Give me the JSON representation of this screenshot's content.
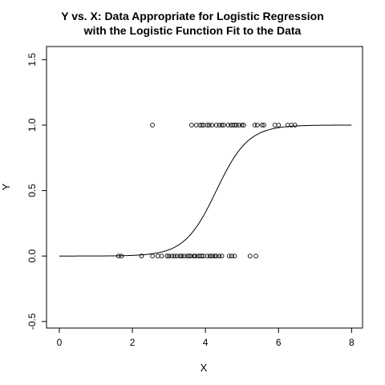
{
  "chart_data": {
    "type": "scatter",
    "title": [
      "Y vs. X: Data Appropriate for Logistic Regression",
      "with the Logistic Function Fit to the Data"
    ],
    "xlabel": "X",
    "ylabel": "Y",
    "xlim": [
      -0.35,
      8.3
    ],
    "ylim": [
      -0.55,
      1.6
    ],
    "xticks": [
      0,
      2,
      4,
      6,
      8
    ],
    "xtick_labels": [
      "0",
      "2",
      "4",
      "6",
      "8"
    ],
    "yticks": [
      -0.5,
      0.0,
      0.5,
      1.0,
      1.5
    ],
    "ytick_labels": [
      "-0.5",
      "0.0",
      "0.5",
      "1.0",
      "1.5"
    ],
    "grid": false,
    "legend": "none",
    "points_y0": [
      1.62,
      1.7,
      2.25,
      2.55,
      2.7,
      2.8,
      2.95,
      3.0,
      3.08,
      3.15,
      3.22,
      3.3,
      3.35,
      3.42,
      3.5,
      3.55,
      3.6,
      3.68,
      3.72,
      3.8,
      3.85,
      3.9,
      3.95,
      4.05,
      4.12,
      4.18,
      4.25,
      4.3,
      4.38,
      4.45,
      4.65,
      4.72,
      4.8,
      5.22,
      5.38
    ],
    "points_y1": [
      2.55,
      3.62,
      3.75,
      3.85,
      3.9,
      3.95,
      4.05,
      4.1,
      4.18,
      4.3,
      4.38,
      4.45,
      4.5,
      4.62,
      4.7,
      4.75,
      4.8,
      4.85,
      4.92,
      5.0,
      5.05,
      5.35,
      5.42,
      5.55,
      5.6,
      5.9,
      6.0,
      6.25,
      6.35,
      6.45
    ],
    "curve": {
      "type": "logistic",
      "x0": 4.3,
      "k": 2.3,
      "x_range": [
        0,
        8
      ]
    }
  }
}
